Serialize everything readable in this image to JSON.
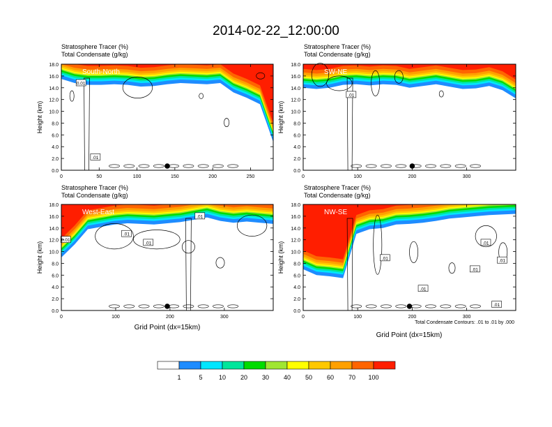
{
  "page_title": "2014-02-22_12:00:00",
  "colors": {
    "scale": [
      "#ffffff",
      "#1e8cff",
      "#00e6ff",
      "#00e69b",
      "#00dc00",
      "#a0e632",
      "#ffff00",
      "#ffc800",
      "#ffa000",
      "#ff6400",
      "#ff1e00"
    ],
    "contour_line": "#000000",
    "plot_frame": "#000000"
  },
  "colorbar": {
    "labels": [
      "1",
      "5",
      "10",
      "20",
      "30",
      "40",
      "50",
      "60",
      "70",
      "100"
    ]
  },
  "contour_note": "Total Condensate Contours: .01 to .01 by .000",
  "chart_data": [
    {
      "type": "heatmap",
      "panel_label": "South-North",
      "title_line1": "Stratosphere Tracer   (%)",
      "title_line2": "Total Condensate   (g/kg)",
      "xlabel": "",
      "ylabel": "Height (km)",
      "xlim": [
        0,
        280
      ],
      "ylim": [
        0,
        18
      ],
      "xticks": [
        "0",
        "50",
        "100",
        "150",
        "200",
        "250"
      ],
      "xtick_values": [
        0,
        50,
        100,
        150,
        200,
        250
      ],
      "yticks": [
        "0.0",
        "2.0",
        "4.0",
        "6.0",
        "8.0",
        "10.0",
        "12.0",
        "14.0",
        "16.0",
        "18.0"
      ],
      "tracer_base_km": [
        15.5,
        14.8,
        14.5,
        14.5,
        14.6,
        14.5,
        14.2,
        14.3,
        14.6,
        14.8,
        14.7,
        14.6,
        14.8,
        13.2,
        12.3,
        11.2,
        4.8
      ],
      "contour_labels": [
        {
          "text": "0.01",
          "x": 26,
          "y": 14.8
        },
        {
          "text": ".01",
          "x": 45,
          "y": 2.2
        }
      ],
      "marker_x": 140,
      "grid": false
    },
    {
      "type": "heatmap",
      "panel_label": "SW-NE",
      "title_line1": "Stratosphere Tracer   (%)",
      "title_line2": "Total Condensate   (g/kg)",
      "xlabel": "",
      "ylabel": "Height (km)",
      "xlim": [
        0,
        390
      ],
      "ylim": [
        0,
        18
      ],
      "xticks": [
        "0",
        "100",
        "200",
        "300"
      ],
      "xtick_values": [
        0,
        100,
        200,
        300
      ],
      "yticks": [
        "0.0",
        "2.0",
        "4.0",
        "6.0",
        "8.0",
        "10.0",
        "12.0",
        "14.0",
        "16.0",
        "18.0"
      ],
      "tracer_base_km": [
        14.0,
        13.8,
        14.0,
        14.5,
        14.6,
        14.4,
        14.6,
        14.5,
        14.0,
        14.3,
        14.6,
        14.2,
        13.8,
        13.9,
        14.3,
        13.6,
        12.2
      ],
      "contour_labels": [
        {
          "text": ".01",
          "x": 88,
          "y": 12.8
        }
      ],
      "marker_x": 200,
      "grid": false
    },
    {
      "type": "heatmap",
      "panel_label": "West-East",
      "title_line1": "Stratosphere Tracer   (%)",
      "title_line2": "Total Condensate   (g/kg)",
      "xlabel": "Grid Point (dx=15km)",
      "ylabel": "Height (km)",
      "xlim": [
        0,
        390
      ],
      "ylim": [
        0,
        18
      ],
      "xticks": [
        "0",
        "100",
        "200",
        "300"
      ],
      "xtick_values": [
        0,
        100,
        200,
        300
      ],
      "yticks": [
        "0.0",
        "2.0",
        "4.0",
        "6.0",
        "8.0",
        "10.0",
        "12.0",
        "14.0",
        "16.0",
        "18.0"
      ],
      "tracer_base_km": [
        9.0,
        11.2,
        13.8,
        14.2,
        14.6,
        14.8,
        14.7,
        14.6,
        14.8,
        15.0,
        15.4,
        15.8,
        15.2,
        14.9,
        15.1,
        14.9,
        14.7
      ],
      "contour_labels": [
        {
          "text": ".01",
          "x": 255,
          "y": 16.0
        },
        {
          "text": ".01",
          "x": 120,
          "y": 13.0
        },
        {
          "text": ".01",
          "x": 160,
          "y": 11.5
        },
        {
          "text": "0.01",
          "x": 8,
          "y": 12.0
        }
      ],
      "marker_x": 195,
      "grid": false
    },
    {
      "type": "heatmap",
      "panel_label": "NW-SE",
      "title_line1": "Stratosphere Tracer   (%)",
      "title_line2": "Total Condensate   (g/kg)",
      "xlabel": "Grid Point (dx=15km)",
      "ylabel": "Height (km)",
      "xlim": [
        0,
        390
      ],
      "ylim": [
        0,
        18
      ],
      "xticks": [
        "0",
        "100",
        "200",
        "300"
      ],
      "xtick_values": [
        0,
        100,
        200,
        300
      ],
      "yticks": [
        "0.0",
        "2.0",
        "4.0",
        "6.0",
        "8.0",
        "10.0",
        "12.0",
        "14.0",
        "16.0",
        "18.0"
      ],
      "tracer_base_km": [
        7.0,
        6.0,
        5.8,
        5.5,
        13.0,
        13.8,
        14.0,
        14.6,
        14.7,
        14.9,
        15.2,
        15.6,
        15.8,
        16.0,
        16.2,
        16.3,
        16.4
      ],
      "contour_labels": [
        {
          "text": ".01",
          "x": 150,
          "y": 8.9
        },
        {
          "text": ".01",
          "x": 220,
          "y": 3.7
        },
        {
          "text": ".01",
          "x": 335,
          "y": 11.5
        },
        {
          "text": ".01",
          "x": 315,
          "y": 7.0
        },
        {
          "text": ".01",
          "x": 365,
          "y": 8.5
        },
        {
          "text": ".01",
          "x": 355,
          "y": 1.0
        }
      ],
      "marker_x": 195,
      "grid": false
    }
  ]
}
